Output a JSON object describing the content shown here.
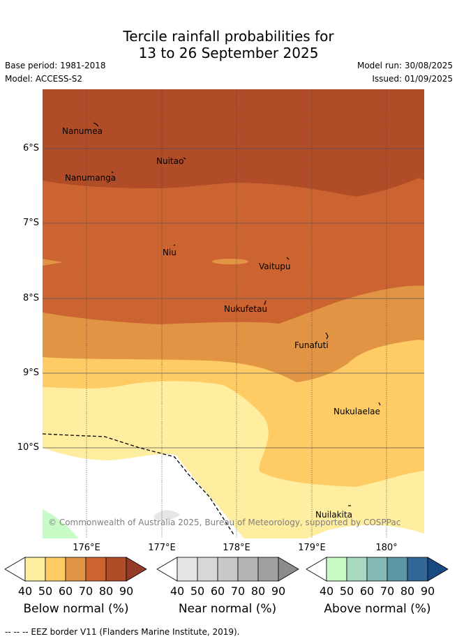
{
  "header": {
    "title_line1": "Tercile rainfall probabilities for",
    "title_line2": "13 to 26 September 2025",
    "base_period": "Base period: 1981-2018",
    "model": "Model: ACCESS-S2",
    "model_run": "Model run: 30/08/2025",
    "issued": "Issued: 01/09/2025"
  },
  "map": {
    "lat_labels": [
      "6°S",
      "7°S",
      "8°S",
      "9°S",
      "10°S"
    ],
    "lon_labels": [
      "176°E",
      "177°E",
      "178°E",
      "179°E",
      "180°"
    ],
    "places": [
      "Nanumea",
      "Nuitao",
      "Nanumanga",
      "Niu",
      "Vaitupu",
      "Nukufetau",
      "Funafuti",
      "Nukulaelae",
      "Nuilakita"
    ],
    "copyright": "© Commonwealth of Australia 2025, Bureau of Meteorology, supported by COSPPac",
    "colors": {
      "below_40": "#ffeda0",
      "below_50": "#fecb64",
      "below_60": "#e19444",
      "below_70": "#cc6432",
      "below_80": "#b14c28",
      "below_90": "#953a24",
      "near_40": "#e6e6e6",
      "near_50": "#d7d7d7",
      "near_60": "#c8c8c8",
      "near_70": "#b4b4b4",
      "near_80": "#a0a0a0",
      "near_90": "#8c8c8c",
      "above_40": "#c7fcc7",
      "above_50": "#a6d9bf",
      "above_60": "#84b9b4",
      "above_70": "#5a96a4",
      "above_80": "#336699",
      "above_90": "#174a83"
    }
  },
  "legend": {
    "ticks": [
      "40",
      "50",
      "60",
      "70",
      "80",
      "90"
    ],
    "below_label": "Below normal (%)",
    "near_label": "Near normal (%)",
    "above_label": "Above normal (%)"
  },
  "footnote": "--  --  -- EEZ border V11 (Flanders Marine Institute, 2019)."
}
